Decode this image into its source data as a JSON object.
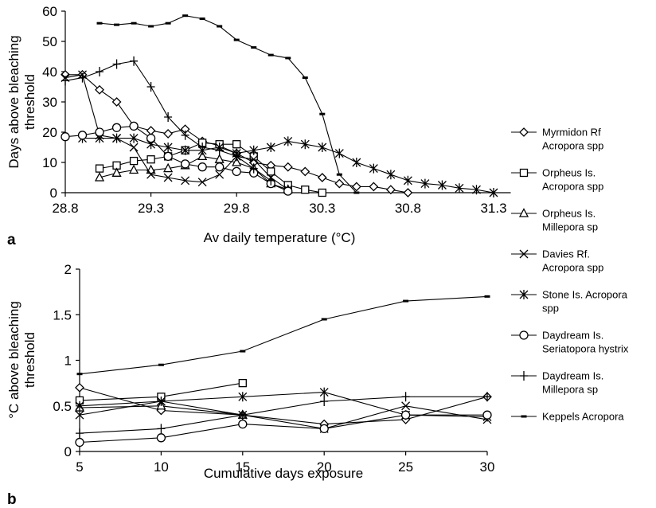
{
  "chart_data": [
    {
      "type": "line",
      "panel_label": "a",
      "title": "",
      "xlabel": "Av daily temperature (°C)",
      "ylabel_lines": [
        "Days above bleaching",
        "threshold"
      ],
      "xlim": [
        28.8,
        31.4
      ],
      "ylim": [
        0,
        60
      ],
      "x_ticks": [
        28.8,
        29.3,
        29.8,
        30.3,
        30.8,
        31.3
      ],
      "x_tick_labels": [
        "28.8",
        "29.3",
        "29.8",
        "30.3",
        "30.8",
        "31.3"
      ],
      "y_ticks": [
        0,
        10,
        20,
        30,
        40,
        50,
        60
      ],
      "y_tick_labels": [
        "0",
        "10",
        "20",
        "30",
        "40",
        "50",
        "60"
      ],
      "grid": false,
      "series": [
        {
          "key": "myrmidon",
          "marker": "diamond",
          "x": [
            28.8,
            28.9,
            29.0,
            29.1,
            29.2,
            29.3,
            29.4,
            29.5,
            29.6,
            29.7,
            29.8,
            29.9,
            30.0,
            30.1,
            30.2,
            30.3,
            30.4,
            30.5,
            30.6,
            30.7,
            30.8
          ],
          "y": [
            39,
            39,
            34,
            30,
            22,
            20.5,
            19.5,
            21,
            17,
            15.5,
            13,
            10,
            9,
            8.5,
            7,
            5,
            3,
            2,
            2,
            1,
            0
          ]
        },
        {
          "key": "orpheus-acropora",
          "marker": "square",
          "x": [
            29.0,
            29.1,
            29.2,
            29.3,
            29.4,
            29.5,
            29.6,
            29.7,
            29.8,
            29.9,
            30.0,
            30.1,
            30.2,
            30.3
          ],
          "y": [
            8,
            9,
            10.5,
            11,
            12,
            14,
            16.5,
            16,
            16,
            12,
            7,
            2.5,
            1,
            0
          ]
        },
        {
          "key": "orpheus-millepora",
          "marker": "triangle",
          "x": [
            29.0,
            29.1,
            29.2,
            29.3,
            29.4,
            29.5,
            29.6,
            29.7,
            29.8,
            29.9,
            30.0,
            30.1
          ],
          "y": [
            5,
            6.5,
            7.5,
            7.5,
            8,
            9,
            12,
            11,
            10,
            8,
            3,
            1
          ]
        },
        {
          "key": "davies",
          "marker": "x",
          "x": [
            28.8,
            28.9,
            29.0,
            29.1,
            29.2,
            29.3,
            29.4,
            29.5,
            29.6,
            29.7,
            29.8,
            29.9,
            30.0,
            30.1
          ],
          "y": [
            38,
            39,
            19,
            18,
            15,
            6,
            5,
            4,
            3.5,
            6,
            12,
            11,
            5,
            1
          ]
        },
        {
          "key": "stone",
          "marker": "asterisk",
          "x": [
            28.9,
            29.0,
            29.1,
            29.2,
            29.3,
            29.4,
            29.5,
            29.6,
            29.7,
            29.8,
            29.9,
            30.0,
            30.1,
            30.2,
            30.3,
            30.4,
            30.5,
            30.6,
            30.7,
            30.8,
            30.9,
            31.0,
            31.1,
            31.2,
            31.3
          ],
          "y": [
            18,
            18,
            18,
            18,
            16,
            15,
            14,
            14,
            15,
            13,
            14,
            15,
            17,
            16,
            15,
            13,
            10,
            8,
            6,
            4,
            3,
            2.5,
            1.5,
            1,
            0
          ]
        },
        {
          "key": "daydream-seriatopora",
          "marker": "circle",
          "x": [
            28.8,
            28.9,
            29.0,
            29.1,
            29.2,
            29.3,
            29.4,
            29.5,
            29.6,
            29.7,
            29.8,
            29.9,
            30.0,
            30.1
          ],
          "y": [
            18.5,
            19,
            20,
            21.5,
            22,
            18,
            12,
            9.5,
            8.5,
            8.5,
            7,
            6.5,
            3,
            0.5
          ]
        },
        {
          "key": "daydream-millepora",
          "marker": "plus",
          "x": [
            28.8,
            28.9,
            29.0,
            29.1,
            29.2,
            29.3,
            29.4,
            29.5,
            29.6,
            29.7,
            29.8,
            29.9,
            30.0
          ],
          "y": [
            37,
            38,
            40,
            42.5,
            43.5,
            35,
            25,
            19,
            15,
            14,
            12,
            8,
            4
          ]
        },
        {
          "key": "keppels",
          "marker": "dash",
          "x": [
            29.0,
            29.1,
            29.2,
            29.3,
            29.4,
            29.5,
            29.6,
            29.7,
            29.8,
            29.9,
            30.0,
            30.1,
            30.2,
            30.3,
            30.4,
            30.5
          ],
          "y": [
            56,
            55.5,
            56,
            55,
            56,
            58.5,
            57.5,
            55,
            50.5,
            48,
            45.5,
            44.5,
            38,
            26,
            6,
            0
          ]
        }
      ]
    },
    {
      "type": "line",
      "panel_label": "b",
      "title": "",
      "xlabel": "Cumulative days exposure",
      "ylabel_lines": [
        "°C above bleaching",
        "threshold"
      ],
      "xlim": [
        5,
        30
      ],
      "ylim": [
        0,
        2
      ],
      "x_ticks": [
        5,
        10,
        15,
        20,
        25,
        30
      ],
      "x_tick_labels": [
        "5",
        "10",
        "15",
        "20",
        "25",
        "30"
      ],
      "y_ticks": [
        0,
        0.5,
        1,
        1.5,
        2
      ],
      "y_tick_labels": [
        "0",
        "0.5",
        "1",
        "1.5",
        "2"
      ],
      "grid": false,
      "series": [
        {
          "key": "myrmidon",
          "marker": "diamond",
          "x": [
            5,
            10,
            15,
            20,
            25,
            30
          ],
          "y": [
            0.7,
            0.45,
            0.4,
            0.3,
            0.35,
            0.6
          ]
        },
        {
          "key": "orpheus-acropora",
          "marker": "square",
          "x": [
            5,
            10,
            15
          ],
          "y": [
            0.56,
            0.6,
            0.75
          ]
        },
        {
          "key": "orpheus-millepora",
          "marker": "triangle",
          "x": [
            5,
            10,
            15
          ],
          "y": [
            0.48,
            0.5,
            0.4
          ]
        },
        {
          "key": "davies",
          "marker": "x",
          "x": [
            5,
            10,
            15,
            20,
            25,
            30
          ],
          "y": [
            0.4,
            0.55,
            0.4,
            0.25,
            0.5,
            0.35
          ]
        },
        {
          "key": "stone",
          "marker": "asterisk",
          "x": [
            5,
            10,
            15,
            20,
            25,
            30
          ],
          "y": [
            0.5,
            0.55,
            0.6,
            0.65,
            0.4,
            0.38
          ]
        },
        {
          "key": "daydream-seriatopora",
          "marker": "circle",
          "x": [
            5,
            10,
            15,
            20,
            25,
            30
          ],
          "y": [
            0.1,
            0.15,
            0.3,
            0.25,
            0.4,
            0.4
          ]
        },
        {
          "key": "daydream-millepora",
          "marker": "plus",
          "x": [
            5,
            10,
            15,
            20,
            25,
            30
          ],
          "y": [
            0.2,
            0.25,
            0.4,
            0.55,
            0.6,
            0.6
          ]
        },
        {
          "key": "keppels",
          "marker": "dash",
          "x": [
            5,
            10,
            15,
            20,
            25,
            30
          ],
          "y": [
            0.85,
            0.95,
            1.1,
            1.45,
            1.65,
            1.7
          ]
        }
      ]
    }
  ],
  "legend": {
    "placement": "right",
    "entries": [
      {
        "key": "myrmidon",
        "marker": "diamond",
        "lines": [
          "Myrmidon Rf",
          "Acropora spp"
        ]
      },
      {
        "key": "orpheus-acropora",
        "marker": "square",
        "lines": [
          "Orpheus Is.",
          "Acropora spp"
        ]
      },
      {
        "key": "orpheus-millepora",
        "marker": "triangle",
        "lines": [
          "Orpheus Is.",
          "Millepora sp"
        ]
      },
      {
        "key": "davies",
        "marker": "x",
        "lines": [
          "Davies Rf.",
          "Acropora spp"
        ]
      },
      {
        "key": "stone",
        "marker": "asterisk",
        "lines": [
          "Stone Is. Acropora",
          "spp"
        ]
      },
      {
        "key": "daydream-seriatopora",
        "marker": "circle",
        "lines": [
          "Daydream Is.",
          "Seriatopora hystrix"
        ]
      },
      {
        "key": "daydream-millepora",
        "marker": "plus",
        "lines": [
          "Daydream Is.",
          "Millepora sp"
        ]
      },
      {
        "key": "keppels",
        "marker": "dash",
        "lines": [
          "Keppels Acropora"
        ]
      }
    ]
  }
}
